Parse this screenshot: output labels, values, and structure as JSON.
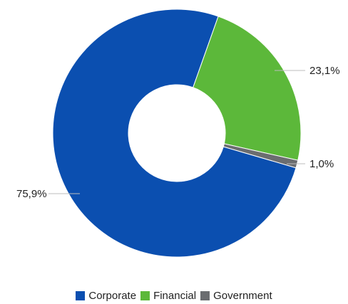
{
  "chart_data": {
    "type": "pie",
    "variant": "donut",
    "categories": [
      "Corporate",
      "Financial",
      "Government"
    ],
    "values": [
      75.9,
      23.1,
      1.0
    ],
    "labels": [
      "75,9%",
      "23,1%",
      "1,0%"
    ],
    "colors": [
      "#0b4fb0",
      "#5cb83a",
      "#6b6d70"
    ],
    "legend_position": "bottom"
  }
}
